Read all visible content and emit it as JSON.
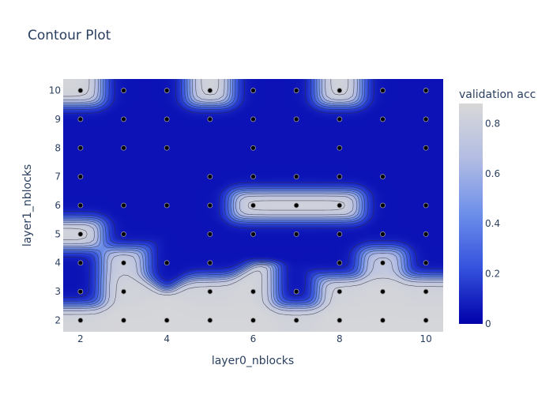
{
  "chart_data": {
    "type": "contour",
    "title": "Contour Plot",
    "xlabel": "layer0_nblocks",
    "ylabel": "layer1_nblocks",
    "colorbar_title": "validation acc",
    "x_ticks": [
      "2",
      "4",
      "6",
      "8",
      "10"
    ],
    "y_ticks": [
      "2",
      "3",
      "4",
      "5",
      "6",
      "7",
      "8",
      "9",
      "10"
    ],
    "colorbar_ticks": [
      "0",
      "0.2",
      "0.4",
      "0.6",
      "0.8"
    ],
    "xlim": [
      1.6,
      10.4
    ],
    "ylim": [
      1.6,
      10.4
    ],
    "zlim": [
      0,
      0.88
    ],
    "colorscale": [
      "#0000aa",
      "#3451dd",
      "#6d8fea",
      "#b3bde3",
      "#d8d8d8"
    ],
    "legend": "none",
    "grid": "off",
    "trials": [
      {
        "x": 2,
        "y": 2,
        "acc": 0.85
      },
      {
        "x": 3,
        "y": 2,
        "acc": 0.86
      },
      {
        "x": 4,
        "y": 2,
        "acc": 0.86
      },
      {
        "x": 5,
        "y": 2,
        "acc": 0.86
      },
      {
        "x": 6,
        "y": 2,
        "acc": 0.86
      },
      {
        "x": 7,
        "y": 2,
        "acc": 0.84
      },
      {
        "x": 8,
        "y": 2,
        "acc": 0.86
      },
      {
        "x": 9,
        "y": 2,
        "acc": 0.86
      },
      {
        "x": 10,
        "y": 2,
        "acc": 0.86
      },
      {
        "x": 2,
        "y": 3,
        "acc": 0.05
      },
      {
        "x": 3,
        "y": 3,
        "acc": 0.84
      },
      {
        "x": 5,
        "y": 3,
        "acc": 0.84
      },
      {
        "x": 6,
        "y": 3,
        "acc": 0.85
      },
      {
        "x": 7,
        "y": 3,
        "acc": 0.05
      },
      {
        "x": 8,
        "y": 3,
        "acc": 0.84
      },
      {
        "x": 9,
        "y": 3,
        "acc": 0.85
      },
      {
        "x": 10,
        "y": 3,
        "acc": 0.84
      },
      {
        "x": 2,
        "y": 4,
        "acc": 0.05
      },
      {
        "x": 3,
        "y": 4,
        "acc": 0.8
      },
      {
        "x": 4,
        "y": 4,
        "acc": 0.05
      },
      {
        "x": 5,
        "y": 4,
        "acc": 0.05
      },
      {
        "x": 8,
        "y": 4,
        "acc": 0.05
      },
      {
        "x": 9,
        "y": 4,
        "acc": 0.75
      },
      {
        "x": 10,
        "y": 4,
        "acc": 0.05
      },
      {
        "x": 2,
        "y": 5,
        "acc": 0.85
      },
      {
        "x": 3,
        "y": 5,
        "acc": 0.05
      },
      {
        "x": 5,
        "y": 5,
        "acc": 0.05
      },
      {
        "x": 6,
        "y": 5,
        "acc": 0.05
      },
      {
        "x": 7,
        "y": 5,
        "acc": 0.05
      },
      {
        "x": 8,
        "y": 5,
        "acc": 0.05
      },
      {
        "x": 9,
        "y": 5,
        "acc": 0.05
      },
      {
        "x": 10,
        "y": 5,
        "acc": 0.05
      },
      {
        "x": 2,
        "y": 6,
        "acc": 0.05
      },
      {
        "x": 3,
        "y": 6,
        "acc": 0.05
      },
      {
        "x": 4,
        "y": 6,
        "acc": 0.05
      },
      {
        "x": 5,
        "y": 6,
        "acc": 0.05
      },
      {
        "x": 6,
        "y": 6,
        "acc": 0.84
      },
      {
        "x": 7,
        "y": 6,
        "acc": 0.84
      },
      {
        "x": 8,
        "y": 6,
        "acc": 0.84
      },
      {
        "x": 9,
        "y": 6,
        "acc": 0.05
      },
      {
        "x": 10,
        "y": 6,
        "acc": 0.05
      },
      {
        "x": 2,
        "y": 7,
        "acc": 0.05
      },
      {
        "x": 5,
        "y": 7,
        "acc": 0.05
      },
      {
        "x": 6,
        "y": 7,
        "acc": 0.05
      },
      {
        "x": 7,
        "y": 7,
        "acc": 0.05
      },
      {
        "x": 8,
        "y": 7,
        "acc": 0.05
      },
      {
        "x": 9,
        "y": 7,
        "acc": 0.05
      },
      {
        "x": 2,
        "y": 8,
        "acc": 0.05
      },
      {
        "x": 3,
        "y": 8,
        "acc": 0.05
      },
      {
        "x": 4,
        "y": 8,
        "acc": 0.05
      },
      {
        "x": 6,
        "y": 8,
        "acc": 0.05
      },
      {
        "x": 8,
        "y": 8,
        "acc": 0.05
      },
      {
        "x": 10,
        "y": 8,
        "acc": 0.05
      },
      {
        "x": 2,
        "y": 9,
        "acc": 0.05
      },
      {
        "x": 3,
        "y": 9,
        "acc": 0.05
      },
      {
        "x": 4,
        "y": 9,
        "acc": 0.05
      },
      {
        "x": 5,
        "y": 9,
        "acc": 0.05
      },
      {
        "x": 6,
        "y": 9,
        "acc": 0.05
      },
      {
        "x": 7,
        "y": 9,
        "acc": 0.05
      },
      {
        "x": 8,
        "y": 9,
        "acc": 0.05
      },
      {
        "x": 9,
        "y": 9,
        "acc": 0.05
      },
      {
        "x": 10,
        "y": 9,
        "acc": 0.05
      },
      {
        "x": 2,
        "y": 10,
        "acc": 0.85
      },
      {
        "x": 3,
        "y": 10,
        "acc": 0.05
      },
      {
        "x": 4,
        "y": 10,
        "acc": 0.05
      },
      {
        "x": 5,
        "y": 10,
        "acc": 0.85
      },
      {
        "x": 6,
        "y": 10,
        "acc": 0.05
      },
      {
        "x": 7,
        "y": 10,
        "acc": 0.05
      },
      {
        "x": 8,
        "y": 10,
        "acc": 0.85
      },
      {
        "x": 9,
        "y": 10,
        "acc": 0.05
      },
      {
        "x": 10,
        "y": 10,
        "acc": 0.05
      }
    ]
  }
}
